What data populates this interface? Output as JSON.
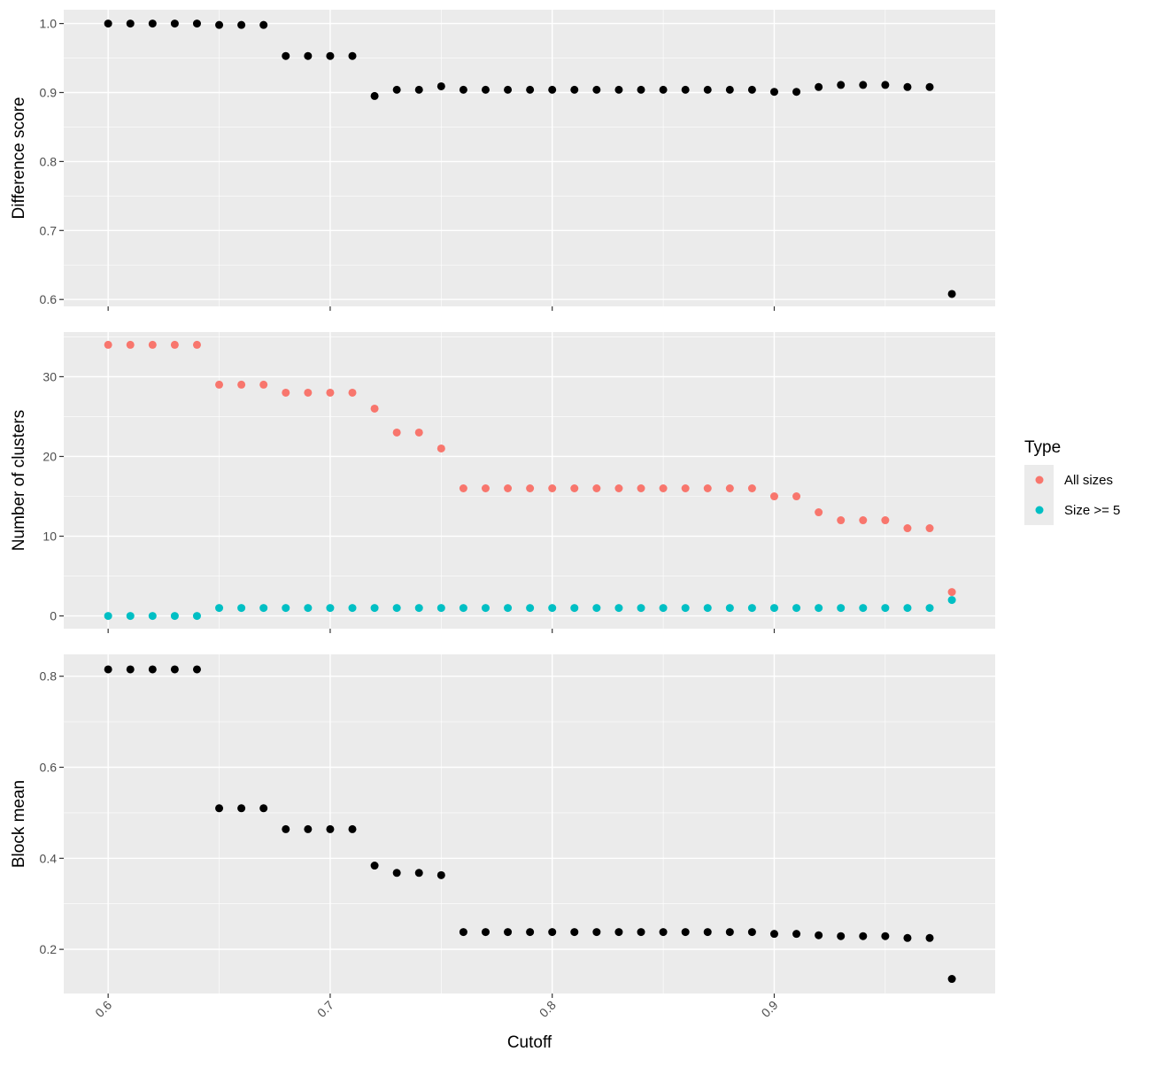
{
  "chart_data": {
    "type": "scatter",
    "xlabel": "Cutoff",
    "x_ticks": [
      "0.6",
      "0.7",
      "0.8",
      "0.9"
    ],
    "x_tick_values": [
      0.6,
      0.7,
      0.8,
      0.9
    ],
    "xlim": [
      0.58,
      0.9995
    ],
    "grid": true,
    "legend": {
      "title": "Type",
      "placement": "right",
      "entries": [
        {
          "label": "All sizes",
          "color": "#F8766D"
        },
        {
          "label": "Size >= 5",
          "color": "#00BFC4"
        }
      ]
    },
    "x": [
      0.6,
      0.61,
      0.62,
      0.63,
      0.64,
      0.65,
      0.66,
      0.67,
      0.68,
      0.69,
      0.7,
      0.71,
      0.72,
      0.73,
      0.74,
      0.75,
      0.76,
      0.77,
      0.78,
      0.79,
      0.8,
      0.81,
      0.82,
      0.83,
      0.84,
      0.85,
      0.86,
      0.87,
      0.88,
      0.89,
      0.9,
      0.91,
      0.92,
      0.93,
      0.94,
      0.95,
      0.96,
      0.97,
      0.98
    ],
    "panels": [
      {
        "ylabel": "Difference score",
        "ylim": [
          0.59,
          1.02
        ],
        "y_ticks": [
          "0.6",
          "0.7",
          "0.8",
          "0.9",
          "1.0"
        ],
        "y_tick_values": [
          0.6,
          0.7,
          0.8,
          0.9,
          1.0
        ],
        "series": [
          {
            "color": "#000000",
            "values": [
              1.0,
              1.0,
              1.0,
              1.0,
              1.0,
              0.998,
              0.998,
              0.998,
              0.953,
              0.953,
              0.953,
              0.953,
              0.895,
              0.904,
              0.904,
              0.909,
              0.904,
              0.904,
              0.904,
              0.904,
              0.904,
              0.904,
              0.904,
              0.904,
              0.904,
              0.904,
              0.904,
              0.904,
              0.904,
              0.904,
              0.901,
              0.901,
              0.908,
              0.911,
              0.911,
              0.911,
              0.908,
              0.908,
              0.608
            ]
          }
        ]
      },
      {
        "ylabel": "Number of clusters",
        "ylim": [
          -1.6,
          35.6
        ],
        "y_ticks": [
          "0",
          "10",
          "20",
          "30"
        ],
        "y_tick_values": [
          0,
          10,
          20,
          30
        ],
        "series": [
          {
            "name": "All sizes",
            "color": "#F8766D",
            "values": [
              34,
              34,
              34,
              34,
              34,
              29,
              29,
              29,
              28,
              28,
              28,
              28,
              26,
              23,
              23,
              21,
              16,
              16,
              16,
              16,
              16,
              16,
              16,
              16,
              16,
              16,
              16,
              16,
              16,
              16,
              15,
              15,
              13,
              12,
              12,
              12,
              11,
              11,
              3
            ]
          },
          {
            "name": "Size >= 5",
            "color": "#00BFC4",
            "values": [
              0,
              0,
              0,
              0,
              0,
              1,
              1,
              1,
              1,
              1,
              1,
              1,
              1,
              1,
              1,
              1,
              1,
              1,
              1,
              1,
              1,
              1,
              1,
              1,
              1,
              1,
              1,
              1,
              1,
              1,
              1,
              1,
              1,
              1,
              1,
              1,
              1,
              1,
              2
            ]
          }
        ]
      },
      {
        "ylabel": "Block mean",
        "ylim": [
          0.103,
          0.848
        ],
        "y_ticks": [
          "0.2",
          "0.4",
          "0.6",
          "0.8"
        ],
        "y_tick_values": [
          0.2,
          0.4,
          0.6,
          0.8
        ],
        "series": [
          {
            "color": "#000000",
            "values": [
              0.815,
              0.815,
              0.815,
              0.815,
              0.815,
              0.51,
              0.51,
              0.51,
              0.464,
              0.464,
              0.464,
              0.464,
              0.384,
              0.368,
              0.368,
              0.363,
              0.238,
              0.238,
              0.238,
              0.238,
              0.238,
              0.238,
              0.238,
              0.238,
              0.238,
              0.238,
              0.238,
              0.238,
              0.238,
              0.238,
              0.234,
              0.234,
              0.231,
              0.229,
              0.229,
              0.229,
              0.225,
              0.225,
              0.135
            ]
          }
        ]
      }
    ]
  }
}
